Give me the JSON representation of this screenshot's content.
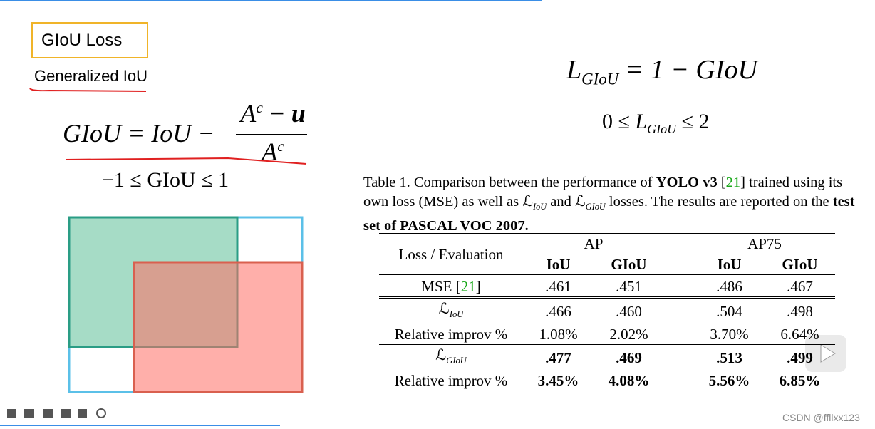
{
  "slide": {
    "title": "GIoU Loss",
    "subtitle": "Generalized IoU",
    "formula_giou": {
      "lhs": "GIoU = IoU −",
      "num_base": "A",
      "num_sup": "c",
      "num_rest": " − u",
      "den_base": "A",
      "den_sup": "c"
    },
    "range_giou": "−1 ≤ GIoU ≤ 1",
    "formula_loss": {
      "base": "L",
      "sub": "GIoU",
      "rest": " = 1 − GIoU"
    },
    "range_loss": {
      "left": "0 ≤ ",
      "base": "L",
      "sub": "GIoU",
      "right": " ≤ 2"
    }
  },
  "table": {
    "caption": [
      "Table 1.",
      " Comparison between the performance of ",
      "YOLO v3",
      " [",
      "21",
      "] trained using its own loss (MSE) as well as ",
      "ℒ",
      "IoU",
      " and ",
      "ℒ",
      "GIoU",
      " losses. The results are reported on the ",
      "test set of PASCAL VOC 2007."
    ],
    "corner": "Loss / Evaluation",
    "groups": [
      "AP",
      "AP75"
    ],
    "subheaders": [
      "IoU",
      "GIoU",
      "IoU",
      "GIoU"
    ],
    "rows": [
      {
        "label": [
          "MSE [",
          "21",
          "]"
        ],
        "cells": [
          ".461",
          ".451",
          ".486",
          ".467"
        ]
      },
      {
        "label": [
          "ℒ",
          "IoU"
        ],
        "cells": [
          ".466",
          ".460",
          ".504",
          ".498"
        ]
      },
      {
        "label": [
          "Relative improv %"
        ],
        "cells": [
          "1.08%",
          "2.02%",
          "3.70%",
          "6.64%"
        ]
      },
      {
        "label": [
          "ℒ",
          "GIoU"
        ],
        "cells": [
          ".477",
          ".469",
          ".513",
          ".499"
        ]
      },
      {
        "label": [
          "Relative improv %"
        ],
        "cells": [
          "3.45%",
          "4.08%",
          "5.56%",
          "6.85%"
        ]
      }
    ]
  },
  "watermark": "CSDN @ffllxx123"
}
